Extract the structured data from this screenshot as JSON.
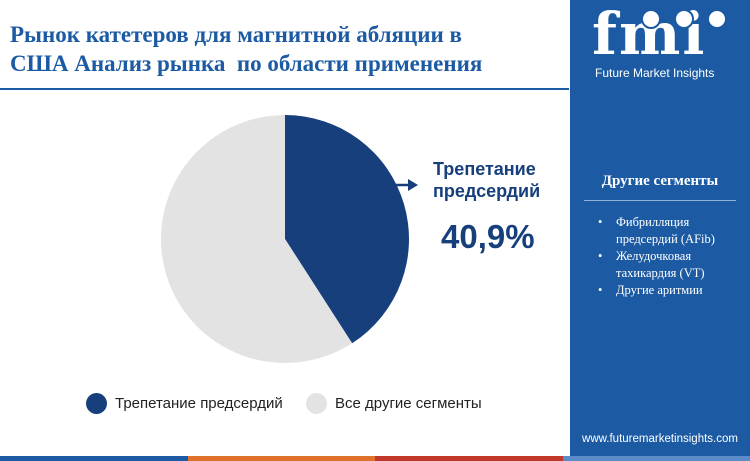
{
  "title_lines": [
    "Рынок катетеров для магнитной абляции в",
    "США Анализ рынка  по области применения"
  ],
  "chart_data": {
    "type": "pie",
    "title": "Рынок катетеров для магнитной абляции в США Анализ рынка  по области применения",
    "slices": [
      {
        "label": "Трепетание предсердий",
        "value": 40.9,
        "color": "#163f7c"
      },
      {
        "label": "Все другие сегменты",
        "value": 59.1,
        "color": "#e3e3e3"
      }
    ],
    "legend_position": "bottom"
  },
  "callout": {
    "label_lines": [
      "Трепетание",
      "предсердий"
    ],
    "value": "40,9%"
  },
  "legend": [
    {
      "label": "Трепетание предсердий",
      "color": "#163f7c"
    },
    {
      "label": "Все другие сегменты",
      "color": "#e3e3e3"
    }
  ],
  "brand": {
    "logo_text": "fmi",
    "logo_subtitle": "Future Market Insights",
    "url": "www.futuremarketinsights.com",
    "panel_color": "#1c5ba3"
  },
  "other_segments": {
    "heading": "Другие сегменты",
    "items": [
      "Фибрилляция предсердий (AFib)",
      "Желудочковая тахикардия (VT)",
      "Другие аритмии"
    ]
  },
  "bottom_bar_colors": [
    "#1c5ba3",
    "#e0712b",
    "#c0392b",
    "#5b8bc9"
  ]
}
